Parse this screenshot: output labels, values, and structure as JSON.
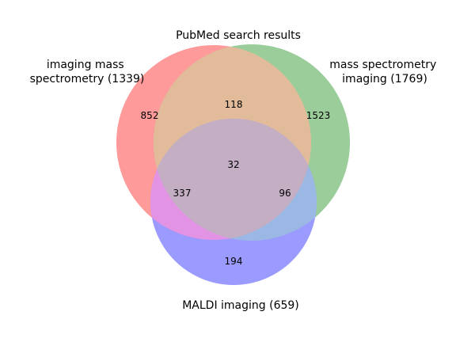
{
  "title": "PubMed search results",
  "sets": {
    "a": {
      "label_line1": "imaging mass",
      "label_line2": "spectrometry (1339)",
      "color": "#ff9a9a"
    },
    "b": {
      "label_line1": "mass spectrometry",
      "label_line2": "imaging (1769)",
      "color": "#9acd9a"
    },
    "c": {
      "label": "MALDI imaging (659)",
      "color": "#9a9aff"
    }
  },
  "regions": {
    "a_only": "852",
    "b_only": "1523",
    "c_only": "194",
    "ab_only": "118",
    "ac_only": "337",
    "bc_only": "96",
    "abc": "32"
  },
  "blend_colors": {
    "ab": "#e2bc9a",
    "ac": "#e393e3",
    "bc": "#9ab8e3",
    "abc": "#c3aec3"
  }
}
